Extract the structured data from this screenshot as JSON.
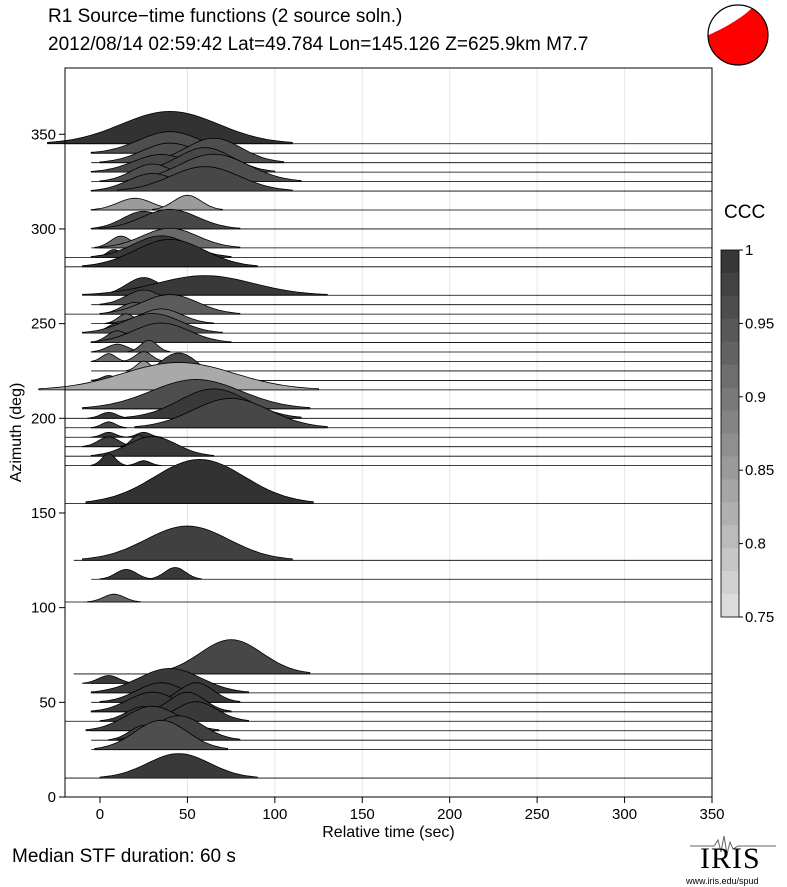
{
  "header": {
    "title": "R1 Source−time functions (2 source soln.)",
    "subtitle": "2012/08/14 02:59:42  Lat=49.784 Lon=145.126  Z=625.9km  M7.7"
  },
  "footer": {
    "median_label": "Median STF duration: 60 s",
    "logo_text": "IRIS",
    "logo_url": "www.iris.edu/spud"
  },
  "colorbar": {
    "title": "CCC",
    "ticks": [
      "1",
      "0.95",
      "0.9",
      "0.85",
      "0.8",
      "0.75"
    ],
    "min": 0.75,
    "max": 1.0
  },
  "beachball": {
    "fill_color": "#ff0000"
  },
  "chart_data": {
    "type": "area",
    "title": "R1 Source−time functions (2 source soln.)",
    "xlabel": "Relative time (sec)",
    "ylabel": "Azimuth (deg)",
    "xlim": [
      -20,
      350
    ],
    "ylim": [
      0,
      385
    ],
    "xticks": [
      0,
      50,
      100,
      150,
      200,
      250,
      300,
      350
    ],
    "yticks": [
      0,
      50,
      100,
      150,
      200,
      250,
      300,
      350
    ],
    "grid": "vertical",
    "series": [
      {
        "azimuth": 10,
        "ccc": 0.99,
        "start": -20,
        "pulses": [
          [
            45,
            45,
            25
          ]
        ]
      },
      {
        "azimuth": 25,
        "ccc": 0.96,
        "start": -5,
        "pulses": [
          [
            35,
            38,
            30
          ]
        ]
      },
      {
        "azimuth": 30,
        "ccc": 0.98,
        "start": -5,
        "pulses": [
          [
            25,
            20,
            15
          ],
          [
            45,
            35,
            25
          ]
        ]
      },
      {
        "azimuth": 35,
        "ccc": 0.98,
        "start": -5,
        "pulses": [
          [
            30,
            38,
            25
          ]
        ]
      },
      {
        "azimuth": 40,
        "ccc": 0.99,
        "start": -20,
        "pulses": [
          [
            25,
            25,
            15
          ],
          [
            55,
            30,
            20
          ]
        ]
      },
      {
        "azimuth": 45,
        "ccc": 0.99,
        "start": -5,
        "pulses": [
          [
            30,
            35,
            20
          ],
          [
            50,
            25,
            20
          ]
        ]
      },
      {
        "azimuth": 50,
        "ccc": 0.99,
        "start": -5,
        "pulses": [
          [
            35,
            35,
            20
          ],
          [
            55,
            25,
            20
          ]
        ]
      },
      {
        "azimuth": 55,
        "ccc": 0.99,
        "start": -5,
        "pulses": [
          [
            40,
            45,
            25
          ]
        ]
      },
      {
        "azimuth": 60,
        "ccc": 0.99,
        "start": -5,
        "pulses": [
          [
            5,
            15,
            8
          ]
        ]
      },
      {
        "azimuth": 65,
        "ccc": 0.97,
        "start": -15,
        "pulses": [
          [
            75,
            45,
            35
          ]
        ]
      },
      {
        "azimuth": 103,
        "ccc": 0.93,
        "start": -20,
        "pulses": [
          [
            8,
            15,
            8
          ]
        ]
      },
      {
        "azimuth": 115,
        "ccc": 0.99,
        "start": -5,
        "pulses": [
          [
            15,
            15,
            10
          ],
          [
            43,
            15,
            12
          ]
        ]
      },
      {
        "azimuth": 125,
        "ccc": 0.98,
        "start": -15,
        "pulses": [
          [
            50,
            60,
            35
          ]
        ]
      },
      {
        "azimuth": 155,
        "ccc": 1.0,
        "start": -20,
        "pulses": [
          [
            57,
            65,
            45
          ]
        ]
      },
      {
        "azimuth": 175,
        "ccc": 1.0,
        "start": -20,
        "pulses": [
          [
            5,
            10,
            12
          ],
          [
            25,
            10,
            5
          ]
        ]
      },
      {
        "azimuth": 180,
        "ccc": 0.99,
        "start": -20,
        "pulses": [
          [
            30,
            35,
            20
          ]
        ]
      },
      {
        "azimuth": 185,
        "ccc": 0.98,
        "start": -20,
        "pulses": [
          [
            5,
            15,
            10
          ],
          [
            22,
            10,
            12
          ]
        ]
      },
      {
        "azimuth": 190,
        "ccc": 0.99,
        "start": -20,
        "pulses": [
          [
            5,
            10,
            5
          ],
          [
            25,
            10,
            5
          ]
        ]
      },
      {
        "azimuth": 195,
        "ccc": 0.97,
        "start": -20,
        "pulses": [
          [
            5,
            10,
            6
          ],
          [
            75,
            55,
            30
          ]
        ]
      },
      {
        "azimuth": 200,
        "ccc": 0.99,
        "start": -20,
        "pulses": [
          [
            5,
            12,
            6
          ],
          [
            65,
            50,
            30
          ]
        ]
      },
      {
        "azimuth": 205,
        "ccc": 0.96,
        "start": -5,
        "pulses": [
          [
            55,
            65,
            30
          ]
        ]
      },
      {
        "azimuth": 215,
        "ccc": 0.83,
        "start": -20,
        "pulses": [
          [
            45,
            80,
            28
          ]
        ]
      },
      {
        "azimuth": 220,
        "ccc": 0.97,
        "start": -5,
        "pulses": [
          [
            5,
            10,
            5
          ],
          [
            45,
            30,
            28
          ]
        ]
      },
      {
        "azimuth": 225,
        "ccc": 0.86,
        "start": -5,
        "pulses": [
          [
            25,
            10,
            10
          ]
        ]
      },
      {
        "azimuth": 230,
        "ccc": 0.92,
        "start": -5,
        "pulses": [
          [
            5,
            10,
            8
          ],
          [
            25,
            12,
            10
          ]
        ]
      },
      {
        "azimuth": 235,
        "ccc": 0.94,
        "start": -5,
        "pulses": [
          [
            10,
            15,
            8
          ],
          [
            28,
            12,
            12
          ]
        ]
      },
      {
        "azimuth": 240,
        "ccc": 0.96,
        "start": -5,
        "pulses": [
          [
            10,
            15,
            12
          ],
          [
            35,
            40,
            20
          ]
        ]
      },
      {
        "azimuth": 245,
        "ccc": 0.96,
        "start": -5,
        "pulses": [
          [
            10,
            15,
            10
          ],
          [
            30,
            40,
            20
          ]
        ]
      },
      {
        "azimuth": 250,
        "ccc": 0.93,
        "start": -5,
        "pulses": [
          [
            15,
            12,
            10
          ],
          [
            35,
            30,
            15
          ]
        ]
      },
      {
        "azimuth": 255,
        "ccc": 0.94,
        "start": -20,
        "pulses": [
          [
            20,
            20,
            12
          ],
          [
            40,
            40,
            20
          ]
        ]
      },
      {
        "azimuth": 260,
        "ccc": 0.96,
        "start": -5,
        "pulses": [
          [
            25,
            25,
            15
          ]
        ]
      },
      {
        "azimuth": 265,
        "ccc": 0.99,
        "start": -5,
        "pulses": [
          [
            25,
            25,
            18
          ],
          [
            60,
            70,
            20
          ]
        ]
      },
      {
        "azimuth": 280,
        "ccc": 1.0,
        "start": -20,
        "pulses": [
          [
            40,
            50,
            28
          ]
        ]
      },
      {
        "azimuth": 285,
        "ccc": 0.99,
        "start": -20,
        "pulses": [
          [
            8,
            10,
            8
          ],
          [
            35,
            40,
            22
          ]
        ]
      },
      {
        "azimuth": 290,
        "ccc": 0.92,
        "start": -5,
        "pulses": [
          [
            12,
            15,
            12
          ],
          [
            40,
            40,
            20
          ]
        ]
      },
      {
        "azimuth": 300,
        "ccc": 0.97,
        "start": -5,
        "pulses": [
          [
            25,
            30,
            18
          ],
          [
            40,
            40,
            20
          ]
        ]
      },
      {
        "azimuth": 310,
        "ccc": 0.85,
        "start": -5,
        "pulses": [
          [
            20,
            25,
            12
          ],
          [
            50,
            20,
            15
          ]
        ]
      },
      {
        "azimuth": 320,
        "ccc": 0.97,
        "start": -5,
        "pulses": [
          [
            30,
            35,
            18
          ],
          [
            60,
            50,
            25
          ]
        ]
      },
      {
        "azimuth": 325,
        "ccc": 0.96,
        "start": -5,
        "pulses": [
          [
            30,
            30,
            18
          ],
          [
            65,
            50,
            28
          ]
        ]
      },
      {
        "azimuth": 330,
        "ccc": 0.97,
        "start": -5,
        "pulses": [
          [
            35,
            40,
            18
          ],
          [
            60,
            40,
            25
          ]
        ]
      },
      {
        "azimuth": 335,
        "ccc": 0.96,
        "start": -5,
        "pulses": [
          [
            40,
            40,
            20
          ],
          [
            65,
            40,
            25
          ]
        ]
      },
      {
        "azimuth": 340,
        "ccc": 0.96,
        "start": -5,
        "pulses": [
          [
            40,
            45,
            22
          ]
        ]
      },
      {
        "azimuth": 345,
        "ccc": 1.0,
        "start": -20,
        "pulses": [
          [
            40,
            70,
            33
          ]
        ]
      }
    ]
  }
}
